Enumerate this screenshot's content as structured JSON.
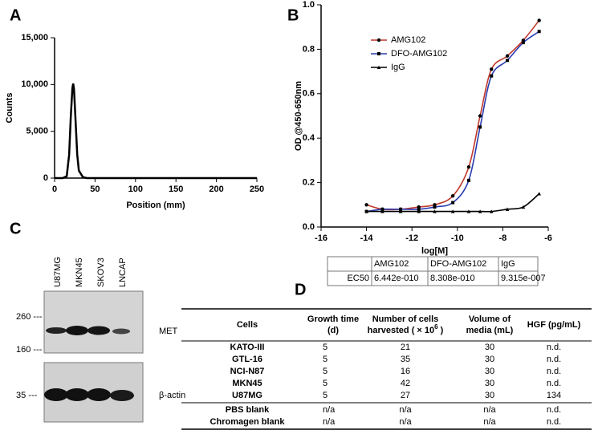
{
  "chart_data": [
    {
      "type": "line",
      "panel": "A",
      "x_label": "Position (mm)",
      "y_label": "Counts",
      "x": [
        0,
        10,
        15,
        18,
        20,
        22,
        23,
        24,
        26,
        28,
        30,
        35,
        40,
        50,
        100,
        150,
        200,
        250
      ],
      "series": [
        {
          "name": "Counts",
          "color": "#000000",
          "values": [
            0,
            0,
            200,
            2500,
            6500,
            9600,
            10100,
            9500,
            6000,
            2500,
            800,
            100,
            0,
            0,
            0,
            0,
            0,
            0
          ]
        }
      ],
      "xlim": [
        0,
        250
      ],
      "xticks": [
        0,
        50,
        100,
        150,
        200,
        250
      ],
      "ylim": [
        0,
        15000
      ],
      "yticks": [
        0,
        {
          "value": 5000,
          "label": "5,000"
        },
        {
          "value": 10000,
          "label": "10,000"
        },
        {
          "value": 15000,
          "label": "15,000"
        }
      ]
    },
    {
      "type": "scatter",
      "panel": "B",
      "x_label": "log[M]",
      "y_label": "OD @450-650nm",
      "x": [
        -14,
        -13.3,
        -12.5,
        -11.7,
        -11.0,
        -10.2,
        -9.5,
        -9.0,
        -8.5,
        -7.8,
        -7.1,
        -6.4
      ],
      "series": [
        {
          "name": "AMG102",
          "color": "#c0392b",
          "marker": "circle",
          "values": [
            0.1,
            0.08,
            0.08,
            0.09,
            0.1,
            0.14,
            0.27,
            0.5,
            0.71,
            0.77,
            0.84,
            0.93
          ]
        },
        {
          "name": "DFO-AMG102",
          "color": "#2a3bb0",
          "marker": "square",
          "values": [
            0.07,
            0.08,
            0.08,
            0.08,
            0.09,
            0.11,
            0.21,
            0.45,
            0.68,
            0.75,
            0.83,
            0.88
          ]
        },
        {
          "name": "IgG",
          "color": "#000000",
          "marker": "triangle",
          "values": [
            0.07,
            0.07,
            0.07,
            0.07,
            0.07,
            0.07,
            0.07,
            0.07,
            0.07,
            0.08,
            0.09,
            0.15
          ]
        }
      ],
      "xlim": [
        -16,
        -6
      ],
      "xticks": [
        -16,
        -14,
        -12,
        -10,
        -8,
        -6
      ],
      "ylim": [
        0,
        1
      ],
      "yticks": [
        {
          "value": 0,
          "label": "0.0"
        },
        0.2,
        0.4,
        0.6,
        0.8,
        {
          "value": 1,
          "label": "1.0"
        }
      ],
      "legend": "upper left",
      "ec50_table": {
        "columns": [
          "AMG102",
          "DFO-AMG102",
          "IgG"
        ],
        "row_label": "EC50",
        "values": [
          "6.442e-010",
          "8.308e-010",
          "9.315e-007"
        ]
      }
    }
  ],
  "blot": {
    "panel": "C",
    "lanes": [
      "U87MG",
      "MKN45",
      "SKOV3",
      "LNCAP"
    ],
    "markers": [
      "260 ---",
      "160 ---",
      "35 ---"
    ],
    "proteins": [
      "MET",
      "β-actin"
    ]
  },
  "table_d": {
    "panel": "D",
    "header": [
      "Cells",
      "Growth time\n(d)",
      "Number of cells\nharvested ( × 10^6 )",
      "Volume of\nmedia (mL)",
      "HGF (pg/mL)"
    ],
    "rows": [
      [
        "KATO-III",
        "5",
        "21",
        "30",
        "n.d."
      ],
      [
        "GTL-16",
        "5",
        "35",
        "30",
        "n.d."
      ],
      [
        "NCI-N87",
        "5",
        "16",
        "30",
        "n.d."
      ],
      [
        "MKN45",
        "5",
        "42",
        "30",
        "n.d."
      ],
      [
        "U87MG",
        "5",
        "27",
        "30",
        "134"
      ],
      [
        "PBS blank",
        "n/a",
        "n/a",
        "n/a",
        "n.d."
      ],
      [
        "Chromagen blank",
        "n/a",
        "n/a",
        "n/a",
        "n.d."
      ]
    ]
  }
}
